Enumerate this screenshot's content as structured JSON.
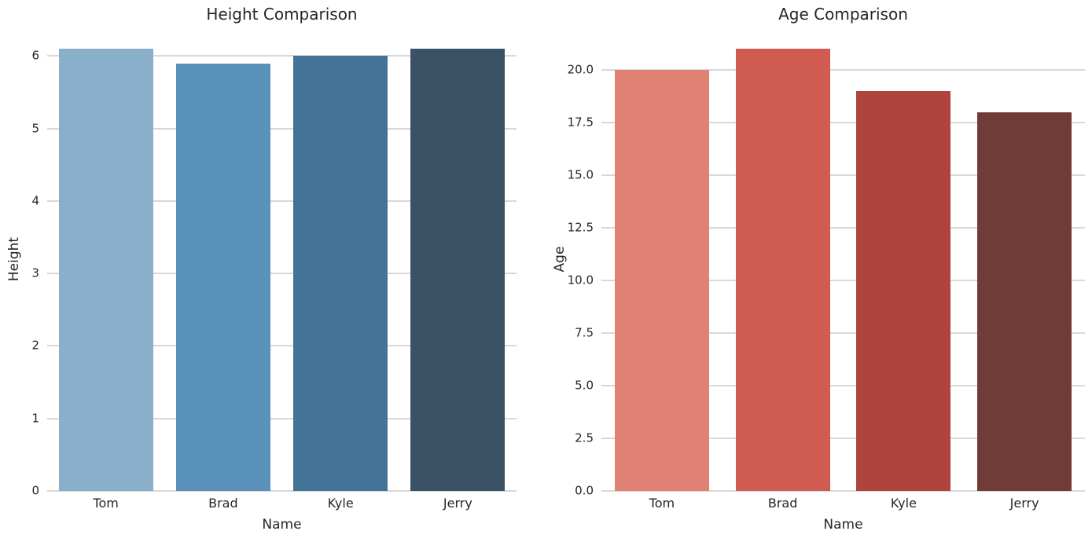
{
  "figure": {
    "background_color": "#ffffff",
    "text_color": "#262626",
    "grid_color": "#d8d8d8"
  },
  "chart_data": [
    {
      "type": "bar",
      "title": "Height Comparison",
      "xlabel": "Name",
      "ylabel": "Height",
      "categories": [
        "Tom",
        "Brad",
        "Kyle",
        "Jerry"
      ],
      "values": [
        6.1,
        5.9,
        6.0,
        6.1
      ],
      "bar_colors": [
        "#8aafca",
        "#5b92bb",
        "#447398",
        "#3b5166"
      ],
      "palette": "Blues_d",
      "yticks": [
        0,
        1,
        2,
        3,
        4,
        5,
        6
      ],
      "ytick_labels": [
        "0",
        "1",
        "2",
        "3",
        "4",
        "5",
        "6"
      ],
      "ylim": [
        0,
        6.405
      ],
      "grid": true,
      "legend": "none"
    },
    {
      "type": "bar",
      "title": "Age Comparison",
      "xlabel": "Name",
      "ylabel": "Age",
      "categories": [
        "Tom",
        "Brad",
        "Kyle",
        "Jerry"
      ],
      "values": [
        20,
        21,
        19,
        18
      ],
      "bar_colors": [
        "#e08273",
        "#d05b50",
        "#ae443d",
        "#713b37"
      ],
      "palette": "Reds_d",
      "yticks": [
        0,
        2.5,
        5,
        7.5,
        10,
        12.5,
        15,
        17.5,
        20
      ],
      "ytick_labels": [
        "0.0",
        "2.5",
        "5.0",
        "7.5",
        "10.0",
        "12.5",
        "15.0",
        "17.5",
        "20.0"
      ],
      "ylim": [
        0,
        22.05
      ],
      "grid": true,
      "legend": "none"
    }
  ]
}
